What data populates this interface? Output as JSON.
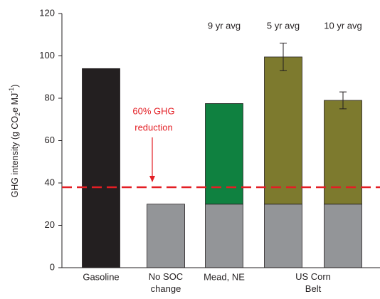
{
  "chart_data": {
    "type": "bar",
    "stacked": true,
    "y_label_parts": [
      "GHG intensity (g CO",
      "2",
      "e MJ",
      "-1",
      ")"
    ],
    "categories": [
      "Gasoline",
      "No SOC change",
      "Mead, NE",
      "US Corn Belt",
      null
    ],
    "bar_labels": [
      null,
      null,
      "9 yr avg",
      "5 yr avg",
      "10 yr avg"
    ],
    "series": [
      {
        "color": "#231f20",
        "values": [
          94,
          null,
          null,
          null,
          null
        ]
      },
      {
        "color": "#939598",
        "values": [
          null,
          30,
          30,
          30,
          30
        ]
      },
      {
        "color": "#0f8140",
        "values": [
          null,
          null,
          47.5,
          null,
          null
        ]
      },
      {
        "color": "#7d7a2e",
        "values": [
          null,
          null,
          null,
          69.5,
          49
        ],
        "errors": [
          null,
          null,
          null,
          6.5,
          4
        ]
      }
    ],
    "reference_line": {
      "value": 38,
      "color": "#e31e24"
    },
    "annotation": [
      "60% GHG",
      "reduction"
    ],
    "ylim": [
      0,
      120
    ],
    "yticks": [
      0,
      20,
      40,
      60,
      80,
      100,
      120
    ]
  }
}
